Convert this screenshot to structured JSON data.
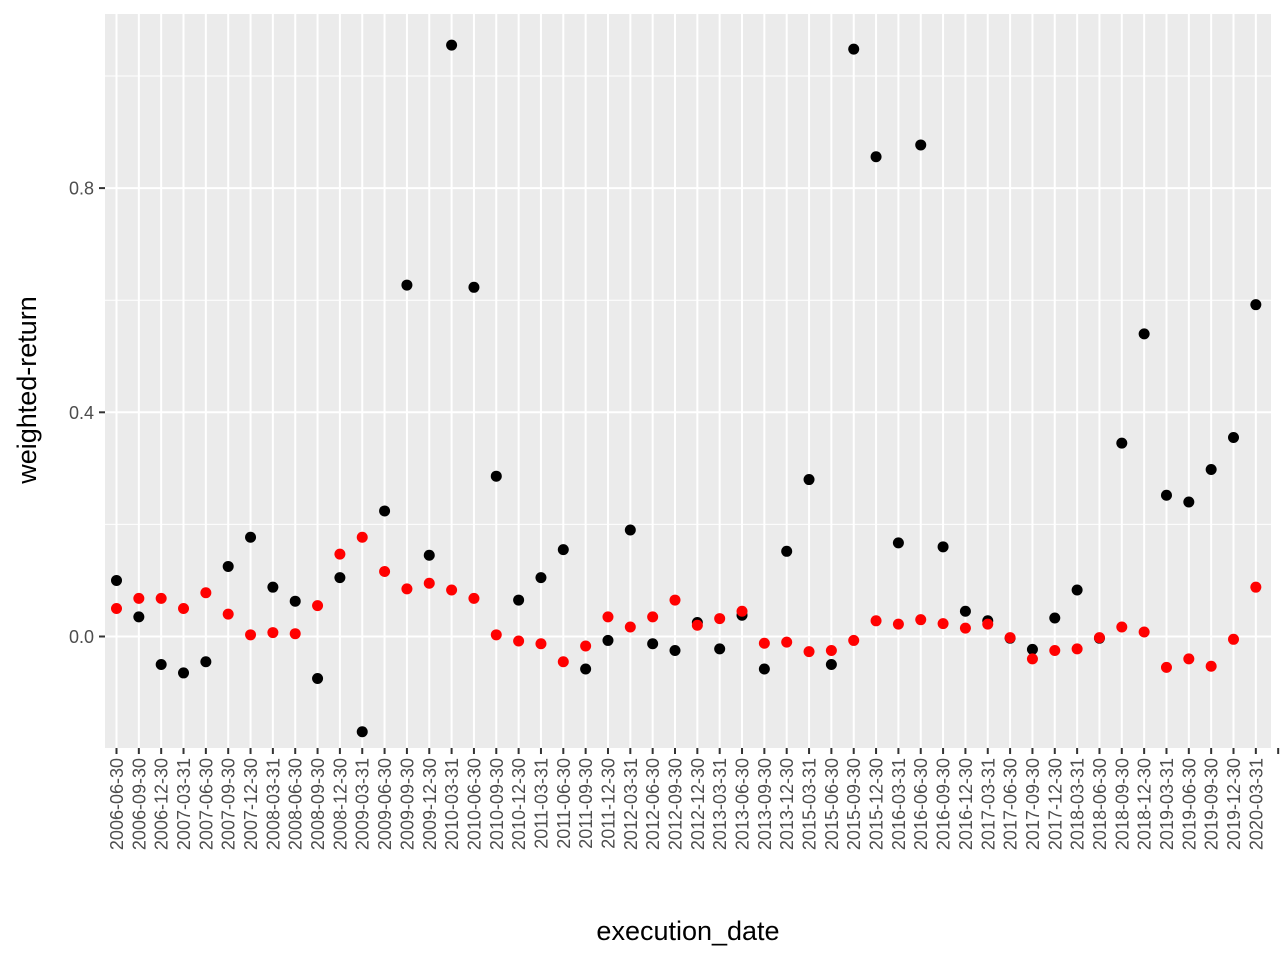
{
  "chart_data": {
    "type": "scatter",
    "title": "",
    "xlabel": "execution_date",
    "ylabel": "weighted-return",
    "y_ticks": [
      0.0,
      0.4,
      0.8
    ],
    "y_tick_labels": [
      "0.0",
      "0.4",
      "0.8"
    ],
    "ylim": [
      -0.215,
      1.115
    ],
    "grid": true,
    "legend": "none",
    "categories": [
      "2006-06-30",
      "2006-09-30",
      "2006-12-30",
      "2007-03-31",
      "2007-06-30",
      "2007-09-30",
      "2007-12-30",
      "2008-03-31",
      "2008-06-30",
      "2008-09-30",
      "2008-12-30",
      "2009-03-31",
      "2009-06-30",
      "2009-09-30",
      "2009-12-30",
      "2010-03-31",
      "2010-06-30",
      "2010-09-30",
      "2010-12-30",
      "2011-03-31",
      "2011-06-30",
      "2011-09-30",
      "2011-12-30",
      "2012-03-31",
      "2012-06-30",
      "2012-09-30",
      "2012-12-30",
      "2013-03-31",
      "2013-06-30",
      "2013-09-30",
      "2013-12-30",
      "2015-03-31",
      "2015-06-30",
      "2015-09-30",
      "2015-12-30",
      "2016-03-31",
      "2016-06-30",
      "2016-09-30",
      "2016-12-30",
      "2017-03-31",
      "2017-06-30",
      "2017-09-30",
      "2017-12-30",
      "2018-03-31",
      "2018-06-30",
      "2018-09-30",
      "2018-12-30",
      "2019-03-31",
      "2019-06-30",
      "2019-09-30",
      "2019-12-30",
      "2020-03-31",
      ""
    ],
    "series": [
      {
        "color": "#000000",
        "values": [
          0.1,
          0.035,
          -0.05,
          -0.065,
          -0.045,
          0.125,
          0.177,
          0.088,
          0.063,
          -0.075,
          0.105,
          -0.17,
          0.224,
          0.627,
          0.145,
          1.055,
          0.623,
          0.286,
          0.065,
          0.105,
          0.155,
          -0.058,
          -0.007,
          0.19,
          -0.013,
          -0.025,
          0.025,
          -0.022,
          0.038,
          -0.058,
          0.152,
          0.28,
          -0.05,
          1.048,
          0.856,
          0.167,
          0.877,
          0.16,
          0.045,
          0.028,
          -0.003,
          -0.023,
          0.033,
          0.083,
          -0.003,
          0.345,
          0.54,
          0.252,
          0.24,
          0.298,
          0.355,
          0.592
        ]
      },
      {
        "color": "#ff0000",
        "values": [
          0.05,
          0.068,
          0.068,
          0.05,
          0.078,
          0.04,
          0.003,
          0.007,
          0.005,
          0.055,
          0.147,
          0.177,
          0.116,
          0.085,
          0.095,
          0.083,
          0.068,
          0.003,
          -0.008,
          -0.013,
          -0.045,
          -0.017,
          0.035,
          0.017,
          0.035,
          0.065,
          0.02,
          0.032,
          0.045,
          -0.012,
          -0.01,
          -0.027,
          -0.025,
          -0.007,
          0.028,
          0.022,
          0.03,
          0.023,
          0.015,
          0.022,
          -0.002,
          -0.04,
          -0.025,
          -0.022,
          -0.002,
          0.017,
          0.008,
          -0.055,
          -0.04,
          -0.053,
          -0.005,
          0.088
        ]
      }
    ]
  }
}
